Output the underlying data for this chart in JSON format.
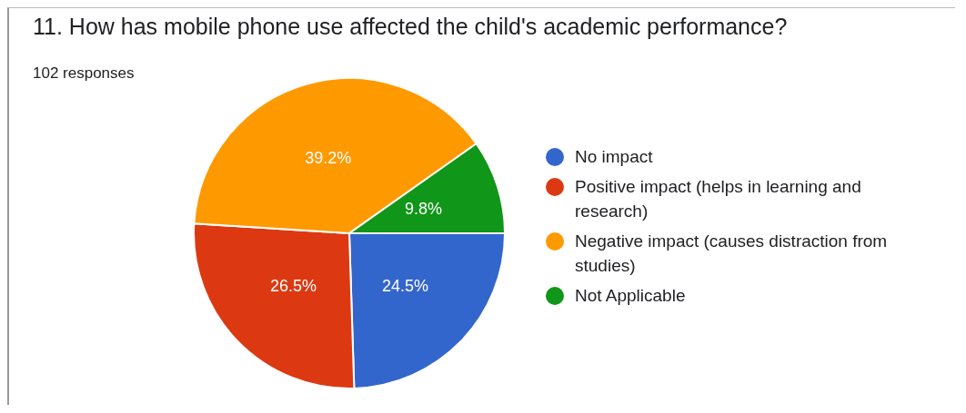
{
  "chart_data": {
    "type": "pie",
    "title": "11.  How has mobile phone use affected the child's academic performance?",
    "subtitle": "102 responses",
    "categories": [
      "No impact",
      "Positive impact (helps in learning and research)",
      "Negative impact (causes distraction from studies)",
      "Not Applicable"
    ],
    "values": [
      24.5,
      26.5,
      39.2,
      9.8
    ],
    "colors": [
      "#3366cc",
      "#dc3912",
      "#ff9900",
      "#109618"
    ],
    "value_labels": [
      "24.5%",
      "26.5%",
      "39.2%",
      "9.8%"
    ],
    "legend": "right"
  }
}
